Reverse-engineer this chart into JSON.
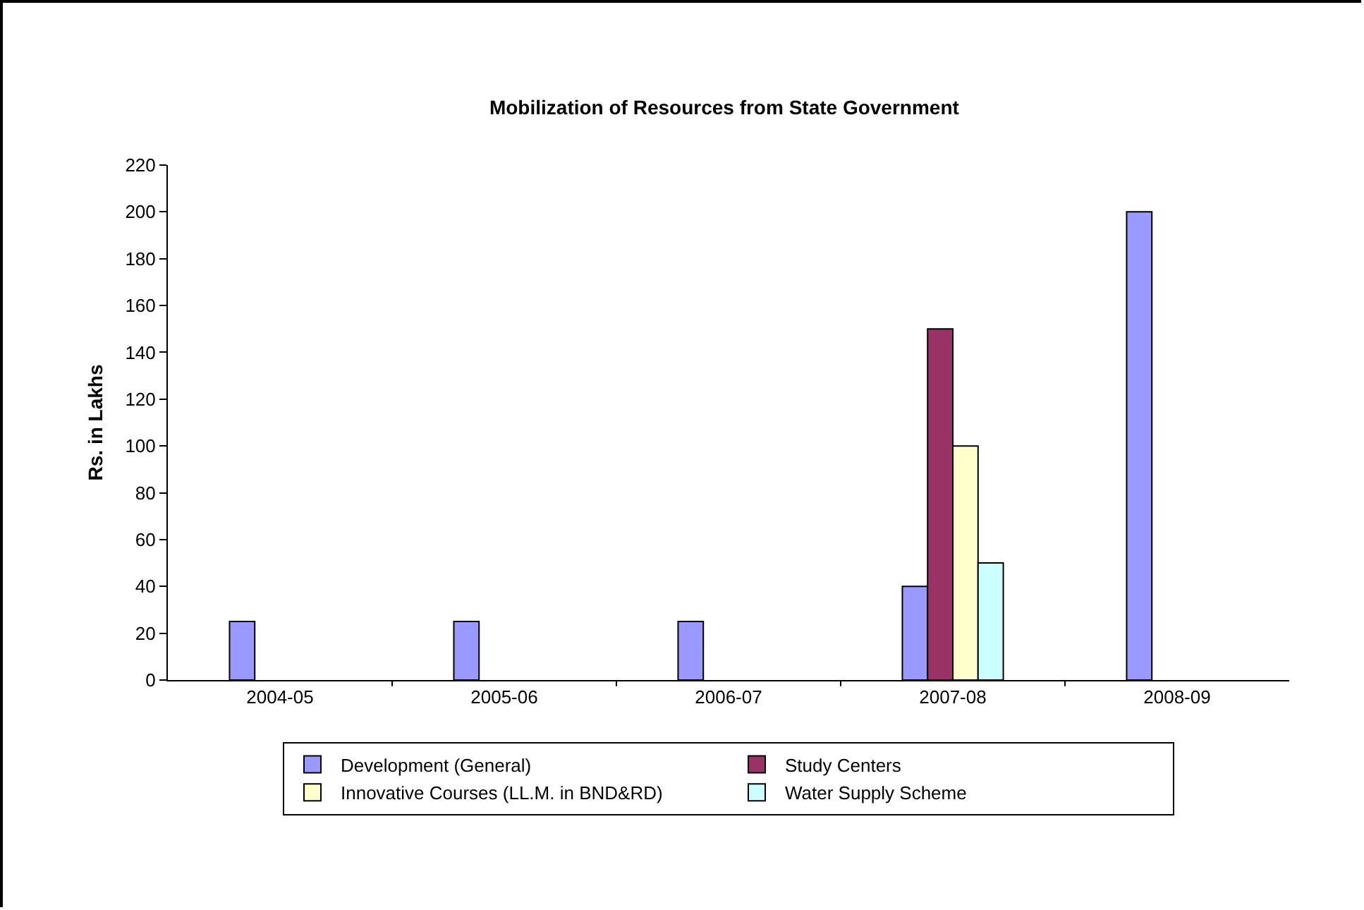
{
  "chart_data": {
    "type": "bar",
    "title": "Mobilization of Resources from State Government",
    "ylabel": "Rs. in Lakhs",
    "categories": [
      "2004-05",
      "2005-06",
      "2006-07",
      "2007-08",
      "2008-09"
    ],
    "series": [
      {
        "name": "Development (General)",
        "color": "#9999ff",
        "values": [
          25,
          25,
          25,
          40,
          200
        ]
      },
      {
        "name": "Study Centers",
        "color": "#993366",
        "values": [
          null,
          null,
          null,
          150,
          null
        ]
      },
      {
        "name": "Innovative Courses (LL.M. in BND&RD)",
        "color": "#ffffcc",
        "values": [
          null,
          null,
          null,
          100,
          null
        ]
      },
      {
        "name": "Water Supply Scheme",
        "color": "#ccffff",
        "values": [
          null,
          null,
          null,
          50,
          null
        ]
      }
    ],
    "ylim": [
      0,
      220
    ],
    "yticks": [
      0,
      20,
      40,
      60,
      80,
      100,
      120,
      140,
      160,
      180,
      200,
      220
    ],
    "grid": false,
    "legend": "bottom"
  }
}
